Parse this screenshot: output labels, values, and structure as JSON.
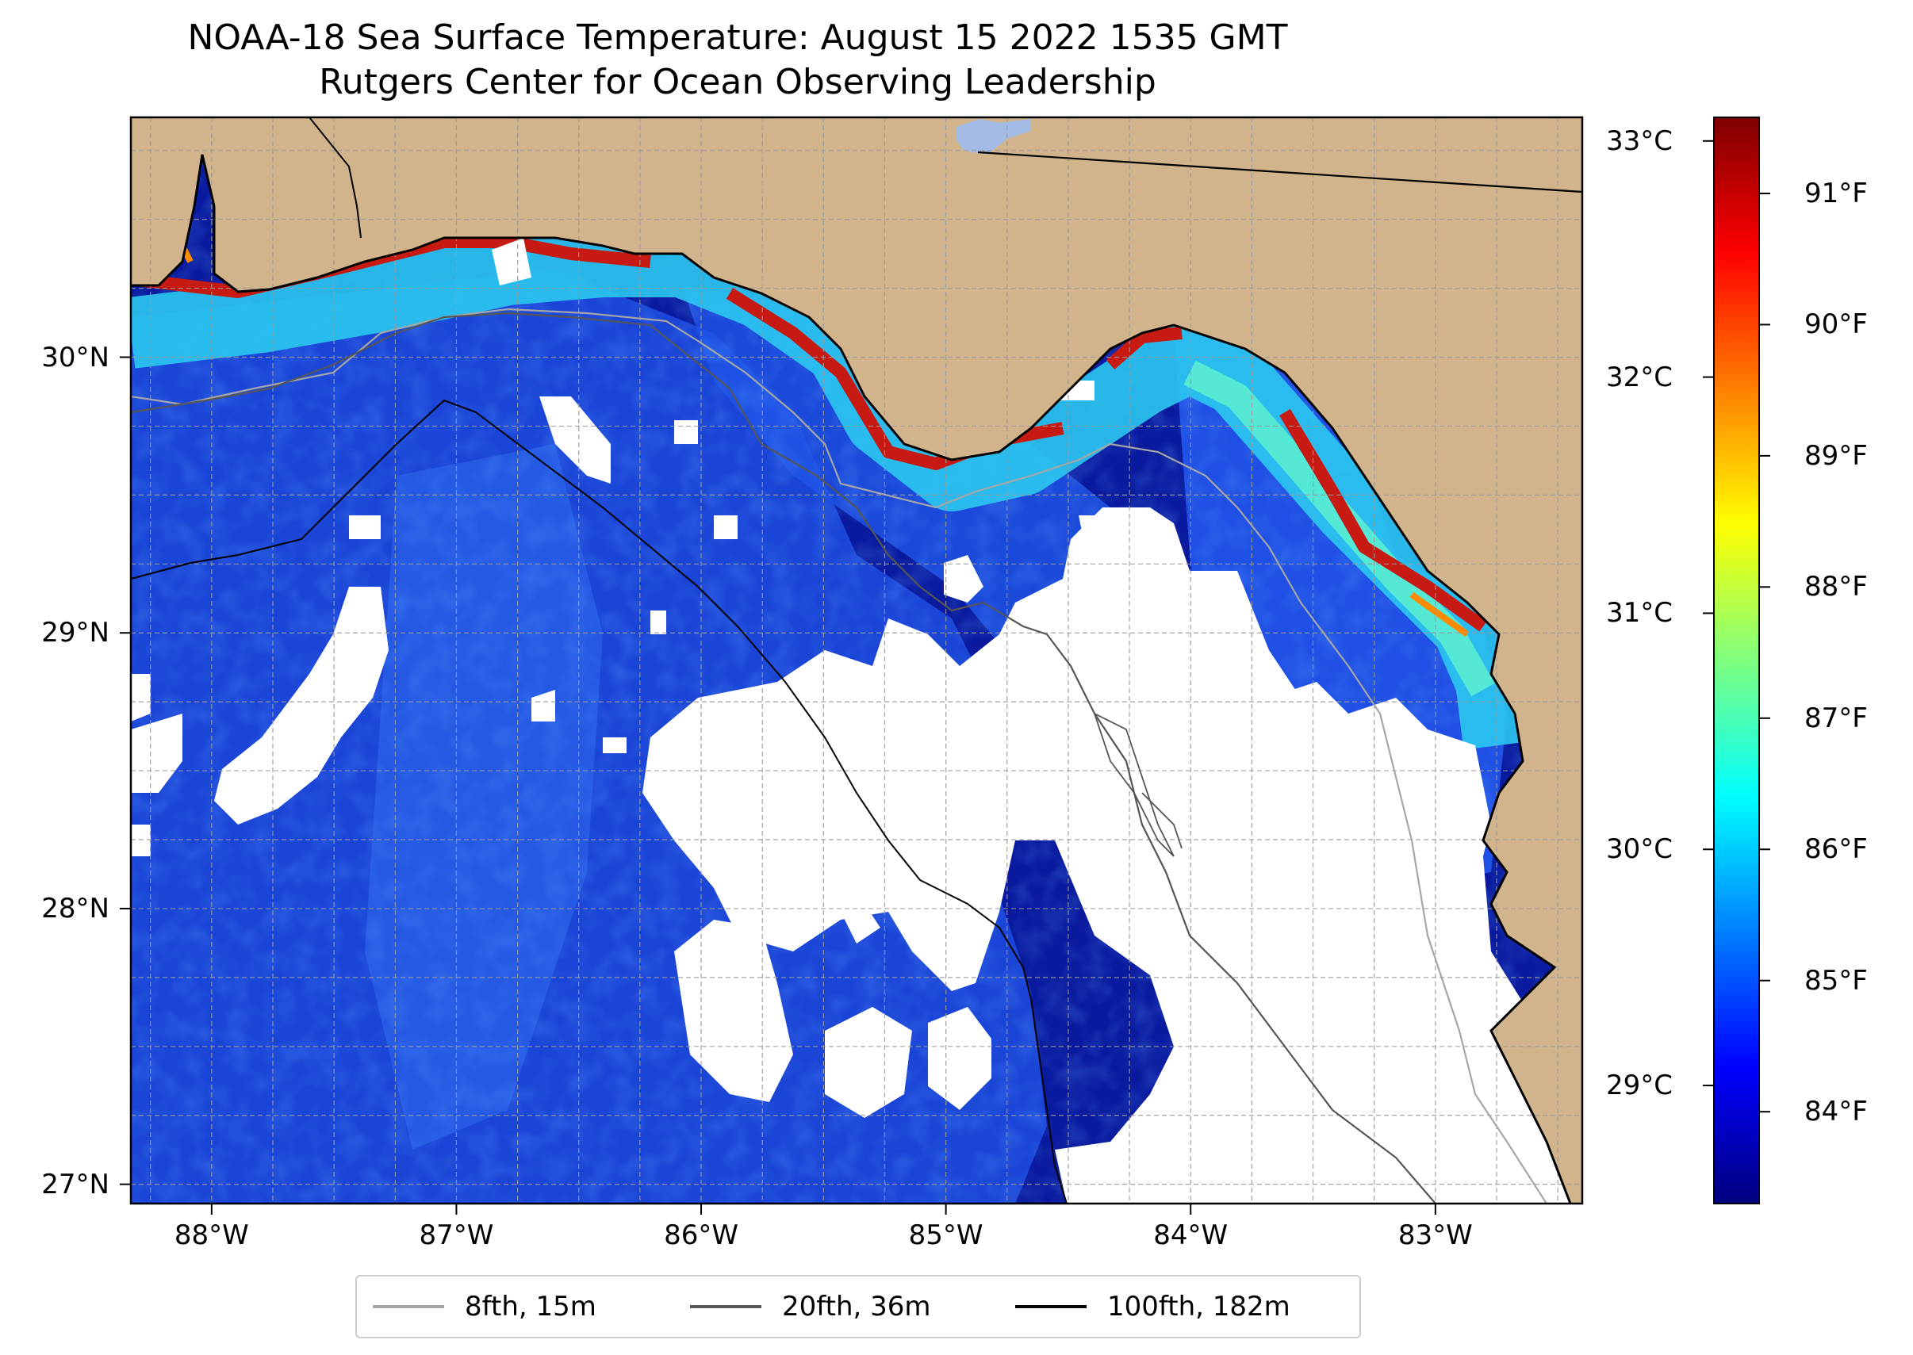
{
  "title": "NOAA-18 Sea Surface Temperature: August 15 2022 1535 GMT",
  "subtitle": "Rutgers Center for Ocean Observing Leadership",
  "colors": {
    "land": "#d2b48c",
    "cloud_mask": "#ffffff",
    "grid": "#9a9a9a",
    "lake": "#a3bce6",
    "ocean_dark": "#0a1a9e",
    "ocean_mid": "#1e4de0",
    "coastal_cyan": "#30d7f0",
    "coastal_hot": "#c71a12"
  },
  "map": {
    "lon_range": [
      -88.33,
      -82.4
    ],
    "lat_range": [
      26.93,
      30.87
    ],
    "lon_ticks": [
      {
        "value": -88,
        "label": "88°W"
      },
      {
        "value": -87,
        "label": "87°W"
      },
      {
        "value": -86,
        "label": "86°W"
      },
      {
        "value": -85,
        "label": "85°W"
      },
      {
        "value": -84,
        "label": "84°W"
      },
      {
        "value": -83,
        "label": "83°W"
      }
    ],
    "lat_ticks": [
      {
        "value": 30,
        "label": "30°N"
      },
      {
        "value": 29,
        "label": "29°N"
      },
      {
        "value": 28,
        "label": "28°N"
      },
      {
        "value": 27,
        "label": "27°N"
      }
    ]
  },
  "colorbar": {
    "celsius_range": [
      28.5,
      33.1
    ],
    "celsius_ticks": [
      {
        "value": 33,
        "label": "33°C"
      },
      {
        "value": 32,
        "label": "32°C"
      },
      {
        "value": 31,
        "label": "31°C"
      },
      {
        "value": 30,
        "label": "30°C"
      },
      {
        "value": 29,
        "label": "29°C"
      }
    ],
    "fahrenheit_ticks": [
      {
        "value": 91,
        "label": "91°F"
      },
      {
        "value": 90,
        "label": "90°F"
      },
      {
        "value": 89,
        "label": "89°F"
      },
      {
        "value": 88,
        "label": "88°F"
      },
      {
        "value": 87,
        "label": "87°F"
      },
      {
        "value": 86,
        "label": "86°F"
      },
      {
        "value": 85,
        "label": "85°F"
      },
      {
        "value": 84,
        "label": "84°F"
      }
    ],
    "stops": [
      "#00007f",
      "#0000ff",
      "#007fff",
      "#00ffff",
      "#7fff7f",
      "#ffff00",
      "#ff7f00",
      "#ff0000",
      "#7f0000"
    ]
  },
  "legend": {
    "items": [
      {
        "label": "8fth, 15m",
        "color": "#a6a6a6"
      },
      {
        "label": "20fth, 36m",
        "color": "#555555"
      },
      {
        "label": "100fth, 182m",
        "color": "#000000"
      }
    ]
  }
}
